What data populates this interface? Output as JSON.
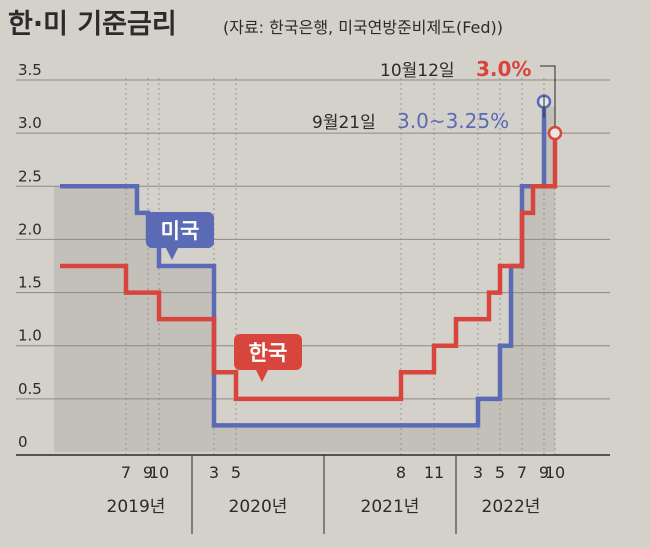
{
  "title": "한·미 기준금리",
  "source": "(자료: 한국은행, 미국연방준비제도(Fed))",
  "colors": {
    "background": "#d4d1cb",
    "korea": "#d8453d",
    "us": "#5a6ab4",
    "text": "#2b2b2b",
    "fill": "#bdbab4",
    "grid": "#8c8a86"
  },
  "chart_data": {
    "type": "line",
    "title": "한·미 기준금리",
    "ylim": [
      0,
      3.5
    ],
    "yticks": [
      "0",
      "0.5",
      "1.0",
      "1.5",
      "2.0",
      "2.5",
      "3.0",
      "3.5"
    ],
    "x_range": [
      "2019-01",
      "2022-10"
    ],
    "years": [
      "2019년",
      "2020년",
      "2021년",
      "2022년"
    ],
    "month_ticks": [
      {
        "label": "7",
        "x": "2019-07"
      },
      {
        "label": "9",
        "x": "2019-09"
      },
      {
        "label": "10",
        "x": "2019-10"
      },
      {
        "label": "3",
        "x": "2020-03"
      },
      {
        "label": "5",
        "x": "2020-05"
      },
      {
        "label": "8",
        "x": "2021-08"
      },
      {
        "label": "11",
        "x": "2021-11"
      },
      {
        "label": "3",
        "x": "2022-03"
      },
      {
        "label": "5",
        "x": "2022-05"
      },
      {
        "label": "7",
        "x": "2022-07"
      },
      {
        "label": "9",
        "x": "2022-09"
      },
      {
        "label": "10",
        "x": "2022-10"
      }
    ],
    "series": [
      {
        "name": "미국",
        "color": "#5a6ab4",
        "steps": [
          {
            "x": "2019-01",
            "y": 2.5
          },
          {
            "x": "2019-08",
            "y": 2.25
          },
          {
            "x": "2019-09",
            "y": 2.0
          },
          {
            "x": "2019-10",
            "y": 1.75
          },
          {
            "x": "2020-03",
            "y": 0.25
          },
          {
            "x": "2022-03",
            "y": 0.5
          },
          {
            "x": "2022-05",
            "y": 1.0
          },
          {
            "x": "2022-06",
            "y": 1.75
          },
          {
            "x": "2022-07",
            "y": 2.5
          },
          {
            "x": "2022-09",
            "y": 3.25
          }
        ],
        "end_x": "2022-09",
        "annotation": {
          "date": "9월21일",
          "value": "3.0~3.25%"
        }
      },
      {
        "name": "한국",
        "color": "#d8453d",
        "steps": [
          {
            "x": "2019-01",
            "y": 1.75
          },
          {
            "x": "2019-07",
            "y": 1.5
          },
          {
            "x": "2019-10",
            "y": 1.25
          },
          {
            "x": "2020-03",
            "y": 0.75
          },
          {
            "x": "2020-05",
            "y": 0.5
          },
          {
            "x": "2021-08",
            "y": 0.75
          },
          {
            "x": "2021-11",
            "y": 1.0
          },
          {
            "x": "2022-01",
            "y": 1.25
          },
          {
            "x": "2022-04",
            "y": 1.5
          },
          {
            "x": "2022-05",
            "y": 1.75
          },
          {
            "x": "2022-07",
            "y": 2.25
          },
          {
            "x": "2022-08",
            "y": 2.5
          },
          {
            "x": "2022-10",
            "y": 3.0
          }
        ],
        "end_x": "2022-10",
        "annotation": {
          "date": "10월12일",
          "value": "3.0%"
        }
      }
    ]
  }
}
